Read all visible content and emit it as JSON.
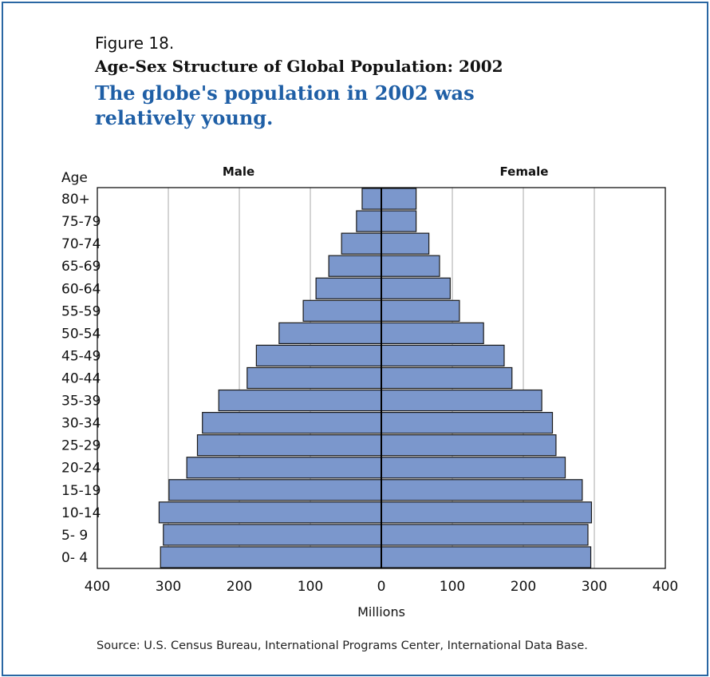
{
  "figure_label": "Figure 18.",
  "title": "Age-Sex Structure of Global Population:  2002",
  "subtitle": "The globe's population in 2002 was relatively young.",
  "source": "Source:  U.S. Census Bureau, International Programs Center, International Data Base.",
  "colors": {
    "bar_fill": "#7b97cc",
    "bar_stroke": "#1a1a1a",
    "frame": "#2a67a3",
    "subtitle": "#1f5fa6",
    "grid": "#aaaaaa"
  },
  "chart_data": {
    "type": "bar",
    "orientation": "horizontal-population-pyramid",
    "age_axis_label": "Age",
    "xlabel": "Millions",
    "xlim": [
      -400,
      400
    ],
    "xtick_values": [
      -400,
      -300,
      -200,
      -100,
      0,
      100,
      200,
      300,
      400
    ],
    "xtick_labels": [
      "400",
      "300",
      "200",
      "100",
      "0",
      "100",
      "200",
      "300",
      "400"
    ],
    "grid": "vertical",
    "categories": [
      "0- 4",
      "5- 9",
      "10-14",
      "15-19",
      "20-24",
      "25-29",
      "30-34",
      "35-39",
      "40-44",
      "45-49",
      "50-54",
      "55-59",
      "60-64",
      "65-69",
      "70-74",
      "75-79",
      "80+"
    ],
    "series": [
      {
        "name": "Male",
        "values": [
          311,
          307,
          313,
          299,
          274,
          259,
          252,
          229,
          189,
          176,
          144,
          110,
          92,
          74,
          56,
          35,
          27
        ]
      },
      {
        "name": "Female",
        "values": [
          295,
          291,
          296,
          283,
          259,
          246,
          241,
          226,
          184,
          173,
          144,
          110,
          97,
          82,
          67,
          49,
          49
        ]
      }
    ]
  }
}
